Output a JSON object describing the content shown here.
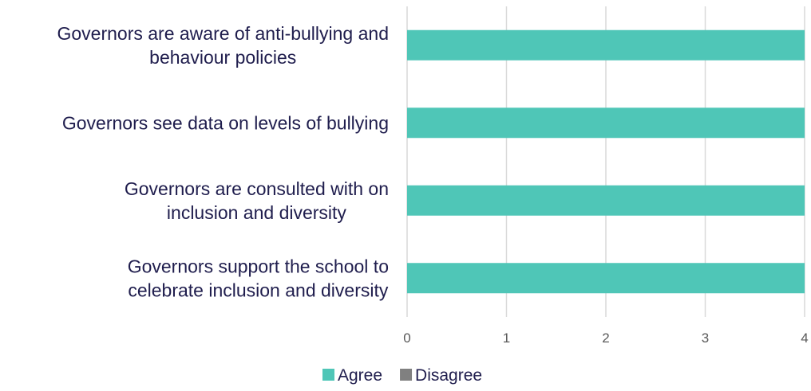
{
  "chart_data": {
    "type": "bar",
    "orientation": "horizontal",
    "categories": [
      [
        "Governors are aware of anti-bullying and",
        "behaviour policies"
      ],
      [
        "Governors see data on levels of bullying"
      ],
      [
        "Governors are consulted with on",
        "inclusion and diversity"
      ],
      [
        "Governors support the school to",
        "celebrate inclusion and diversity"
      ]
    ],
    "series": [
      {
        "name": "Agree",
        "values": [
          4,
          4,
          4,
          4
        ],
        "color": "#4fc6b7"
      },
      {
        "name": "Disagree",
        "values": [
          0,
          0,
          0,
          0
        ],
        "color": "#808080"
      }
    ],
    "xlim": [
      0,
      4
    ],
    "xticks": [
      "0",
      "1",
      "2",
      "3",
      "4"
    ],
    "grid": true,
    "legend_position": "bottom"
  }
}
